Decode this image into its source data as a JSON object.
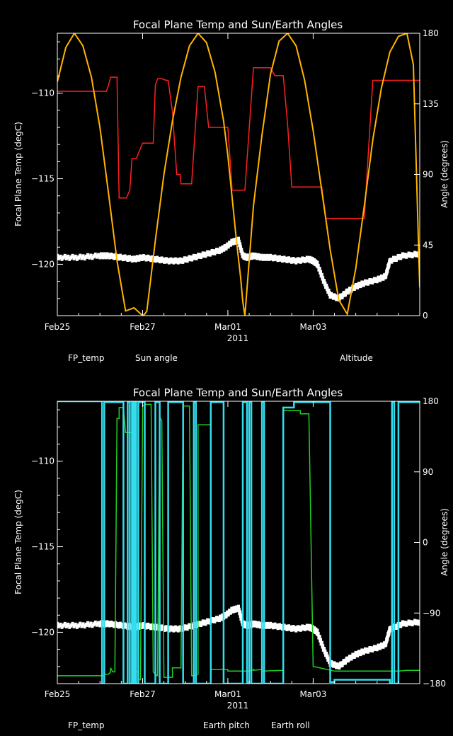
{
  "colors": {
    "background": "#000000",
    "axes": "#ffffff",
    "fp_temp": "#ffffff",
    "sun_angle": "#ff2020",
    "altitude": "#ffb400",
    "earth_pitch": "#20d020",
    "earth_roll": "#33ddee"
  },
  "chart_data": [
    {
      "type": "line",
      "title": "Focal Plane Temp and Sun/Earth Angles",
      "xlabel": "2011",
      "ylabel": "Focal Plane Temp (degC)",
      "y2label": "Angle (degrees)",
      "xlim": [
        0,
        8.5
      ],
      "ylim": [
        -123,
        -106.5
      ],
      "y2lim": [
        0,
        180
      ],
      "x_ticks": [
        {
          "x": 0,
          "label": "Feb25"
        },
        {
          "x": 2,
          "label": "Feb27"
        },
        {
          "x": 4,
          "label": "Mar01"
        },
        {
          "x": 6,
          "label": "Mar03"
        }
      ],
      "y_ticks": [
        {
          "v": -110,
          "label": "−110"
        },
        {
          "v": -115,
          "label": "−115"
        },
        {
          "v": -120,
          "label": "−120"
        }
      ],
      "y2_ticks": [
        {
          "v": 0,
          "label": "0"
        },
        {
          "v": 45,
          "label": "45"
        },
        {
          "v": 90,
          "label": "90"
        },
        {
          "v": 135,
          "label": "135"
        },
        {
          "v": 180,
          "label": "180"
        }
      ],
      "legend": [
        {
          "label": "FP_temp",
          "color": "#ffffff"
        },
        {
          "label": "Sun angle",
          "color": "#ff2020"
        },
        {
          "label": "Altitude",
          "color": "#ffb400"
        }
      ],
      "series": [
        {
          "name": "FP_temp",
          "axis": "left",
          "color": "#ffffff",
          "style": "scatter",
          "x": [
            0.0,
            0.5,
            1.0,
            1.2,
            1.5,
            1.8,
            2.0,
            2.3,
            2.6,
            2.9,
            3.2,
            3.5,
            3.8,
            3.95,
            4.1,
            4.25,
            4.35,
            4.45,
            4.6,
            4.8,
            5.0,
            5.3,
            5.6,
            5.9,
            6.0,
            6.1,
            6.25,
            6.4,
            6.6,
            6.8,
            7.0,
            7.2,
            7.5,
            7.7,
            7.8,
            8.1,
            8.5
          ],
          "y": [
            -119.6,
            -119.6,
            -119.5,
            -119.5,
            -119.6,
            -119.7,
            -119.6,
            -119.7,
            -119.8,
            -119.8,
            -119.6,
            -119.4,
            -119.2,
            -119.0,
            -118.7,
            -118.6,
            -119.5,
            -119.6,
            -119.5,
            -119.6,
            -119.6,
            -119.7,
            -119.8,
            -119.7,
            -119.8,
            -120.0,
            -121.0,
            -121.8,
            -122.0,
            -121.6,
            -121.3,
            -121.1,
            -120.9,
            -120.7,
            -119.8,
            -119.5,
            -119.4
          ]
        },
        {
          "name": "Sun angle",
          "axis": "right",
          "color": "#ff2020",
          "style": "line",
          "x": [
            0.0,
            1.15,
            1.2,
            1.25,
            1.4,
            1.45,
            1.55,
            1.62,
            1.7,
            1.75,
            1.85,
            2.0,
            2.25,
            2.3,
            2.35,
            2.45,
            2.55,
            2.6,
            2.7,
            2.8,
            2.88,
            2.9,
            3.0,
            3.15,
            3.3,
            3.45,
            3.55,
            3.9,
            4.0,
            4.1,
            4.15,
            4.3,
            4.4,
            4.6,
            4.9,
            5.0,
            5.1,
            5.2,
            5.3,
            5.4,
            5.5,
            6.0,
            6.1,
            6.2,
            6.3,
            6.35,
            6.5,
            6.9,
            7.0,
            7.2,
            7.4,
            7.9,
            8.05,
            8.5
          ],
          "y": [
            143,
            143,
            147,
            152,
            152,
            75,
            75,
            75,
            80,
            100,
            100,
            110,
            110,
            147,
            151,
            151,
            150,
            150,
            130,
            90,
            90,
            84,
            84,
            84,
            146,
            146,
            120,
            120,
            120,
            80,
            80,
            80,
            80,
            158,
            158,
            158,
            153,
            153,
            153,
            122,
            82,
            82,
            82,
            82,
            62,
            62,
            62,
            62,
            62,
            62,
            150,
            150,
            150,
            150
          ]
        },
        {
          "name": "Altitude",
          "axis": "right",
          "color": "#ffb400",
          "style": "line",
          "x": [
            0.0,
            0.2,
            0.4,
            0.6,
            0.8,
            1.0,
            1.2,
            1.4,
            1.6,
            1.8,
            2.0,
            2.05,
            2.1,
            2.3,
            2.5,
            2.7,
            2.9,
            3.1,
            3.3,
            3.5,
            3.7,
            3.9,
            4.0,
            4.1,
            4.2,
            4.3,
            4.35,
            4.4,
            4.6,
            4.8,
            5.0,
            5.2,
            5.4,
            5.6,
            5.8,
            6.0,
            6.2,
            6.4,
            6.6,
            6.8,
            7.0,
            7.2,
            7.4,
            7.6,
            7.8,
            8.0,
            8.2,
            8.35,
            8.5
          ],
          "y": [
            149,
            171,
            180,
            172,
            152,
            120,
            78,
            35,
            3,
            5,
            0,
            1,
            3,
            48,
            90,
            124,
            152,
            172,
            180,
            174,
            155,
            124,
            102,
            75,
            48,
            24,
            9,
            0,
            70,
            115,
            154,
            175,
            180,
            172,
            150,
            118,
            80,
            42,
            10,
            1,
            30,
            70,
            112,
            145,
            168,
            178,
            180,
            160,
            18
          ]
        }
      ]
    },
    {
      "type": "line",
      "title": "Focal Plane Temp and Sun/Earth Angles",
      "xlabel": "2011",
      "ylabel": "Focal Plane Temp (degC)",
      "y2label": "Angle (degrees)",
      "xlim": [
        0,
        8.5
      ],
      "ylim": [
        -123,
        -106.5
      ],
      "y2lim": [
        -180,
        180
      ],
      "x_ticks": [
        {
          "x": 0,
          "label": "Feb25"
        },
        {
          "x": 2,
          "label": "Feb27"
        },
        {
          "x": 4,
          "label": "Mar01"
        },
        {
          "x": 6,
          "label": "Mar03"
        }
      ],
      "y_ticks": [
        {
          "v": -110,
          "label": "−110"
        },
        {
          "v": -115,
          "label": "−115"
        },
        {
          "v": -120,
          "label": "−120"
        }
      ],
      "y2_ticks": [
        {
          "v": -180,
          "label": "−180"
        },
        {
          "v": -90,
          "label": "−90"
        },
        {
          "v": 0,
          "label": "0"
        },
        {
          "v": 90,
          "label": "90"
        },
        {
          "v": 180,
          "label": "180"
        }
      ],
      "legend": [
        {
          "label": "FP_temp",
          "color": "#ffffff"
        },
        {
          "label": "Earth pitch",
          "color": "#20d020"
        },
        {
          "label": "Earth roll",
          "color": "#33ddee"
        }
      ],
      "series": [
        {
          "name": "FP_temp",
          "axis": "left",
          "color": "#ffffff",
          "style": "scatter",
          "x": [
            0.0,
            0.5,
            1.0,
            1.2,
            1.5,
            1.8,
            2.0,
            2.3,
            2.6,
            2.9,
            3.2,
            3.5,
            3.8,
            3.95,
            4.1,
            4.25,
            4.35,
            4.45,
            4.6,
            4.8,
            5.0,
            5.3,
            5.6,
            5.9,
            6.0,
            6.1,
            6.25,
            6.4,
            6.6,
            6.8,
            7.0,
            7.2,
            7.5,
            7.7,
            7.8,
            8.1,
            8.5
          ],
          "y": [
            -119.6,
            -119.6,
            -119.5,
            -119.5,
            -119.6,
            -119.7,
            -119.6,
            -119.7,
            -119.8,
            -119.8,
            -119.6,
            -119.4,
            -119.2,
            -119.0,
            -118.7,
            -118.6,
            -119.5,
            -119.6,
            -119.5,
            -119.6,
            -119.6,
            -119.7,
            -119.8,
            -119.7,
            -119.8,
            -120.0,
            -121.0,
            -121.8,
            -122.0,
            -121.6,
            -121.3,
            -121.1,
            -120.9,
            -120.7,
            -119.8,
            -119.5,
            -119.4
          ]
        },
        {
          "name": "Earth pitch",
          "axis": "right",
          "color": "#20d020",
          "style": "line",
          "x": [
            0.0,
            1.1,
            1.1,
            1.2,
            1.25,
            1.25,
            1.3,
            1.35,
            1.4,
            1.45,
            1.45,
            1.55,
            1.6,
            1.8,
            1.8,
            1.85,
            1.9,
            1.9,
            1.95,
            2.0,
            2.05,
            2.2,
            2.25,
            2.3,
            2.35,
            2.4,
            2.45,
            2.5,
            2.6,
            2.7,
            2.7,
            2.9,
            2.95,
            3.1,
            3.15,
            3.2,
            3.3,
            3.3,
            3.6,
            3.6,
            4.0,
            4.0,
            4.5,
            4.6,
            4.6,
            4.8,
            4.8,
            5.3,
            5.3,
            5.7,
            5.7,
            5.9,
            6.0,
            6.5,
            7.0,
            7.2,
            7.8,
            8.0,
            8.2,
            8.5
          ],
          "y": [
            -170,
            -170,
            -168,
            -168,
            -165,
            -160,
            -165,
            -165,
            158,
            158,
            172,
            172,
            140,
            140,
            -168,
            -165,
            -165,
            -175,
            -175,
            174,
            176,
            176,
            -165,
            -168,
            -170,
            160,
            155,
            -172,
            -172,
            -172,
            -160,
            -160,
            174,
            174,
            -170,
            -170,
            -168,
            150,
            150,
            -162,
            -162,
            -164,
            -164,
            -162,
            -163,
            -162,
            -164,
            -163,
            168,
            168,
            164,
            164,
            -158,
            -164,
            -164,
            -164,
            -164,
            -164,
            -163,
            -163
          ]
        },
        {
          "name": "Earth roll",
          "axis": "right",
          "color": "#33ddee",
          "style": "line",
          "x": [
            0.0,
            1.05,
            1.05,
            1.1,
            1.1,
            1.55,
            1.55,
            1.65,
            1.65,
            1.7,
            1.7,
            1.75,
            1.75,
            1.78,
            1.78,
            1.82,
            1.82,
            1.85,
            1.85,
            1.9,
            1.9,
            2.05,
            2.05,
            2.3,
            2.3,
            2.4,
            2.4,
            2.6,
            2.6,
            2.95,
            2.95,
            3.2,
            3.2,
            3.25,
            3.25,
            3.6,
            3.6,
            3.9,
            3.9,
            4.35,
            4.35,
            4.45,
            4.45,
            4.5,
            4.5,
            4.55,
            4.55,
            4.8,
            4.8,
            4.85,
            4.85,
            5.3,
            5.3,
            5.55,
            5.55,
            6.4,
            6.4,
            6.5,
            6.5,
            7.8,
            7.8,
            7.85,
            7.85,
            7.9,
            7.9,
            8.0,
            8.0,
            8.5
          ],
          "y": [
            180,
            180,
            -180,
            -180,
            179,
            179,
            -180,
            -180,
            179,
            179,
            -180,
            -180,
            179,
            179,
            -180,
            -180,
            179,
            179,
            -180,
            -180,
            179,
            179,
            -180,
            -180,
            179,
            179,
            -180,
            -180,
            179,
            179,
            -180,
            -180,
            179,
            179,
            -180,
            -180,
            179,
            179,
            -180,
            -180,
            179,
            179,
            -180,
            -180,
            179,
            179,
            -180,
            -180,
            179,
            179,
            -180,
            -180,
            172,
            172,
            179,
            179,
            -178,
            -178,
            -175,
            -175,
            -180,
            -180,
            179,
            179,
            -180,
            -180,
            179,
            179
          ]
        }
      ]
    }
  ]
}
